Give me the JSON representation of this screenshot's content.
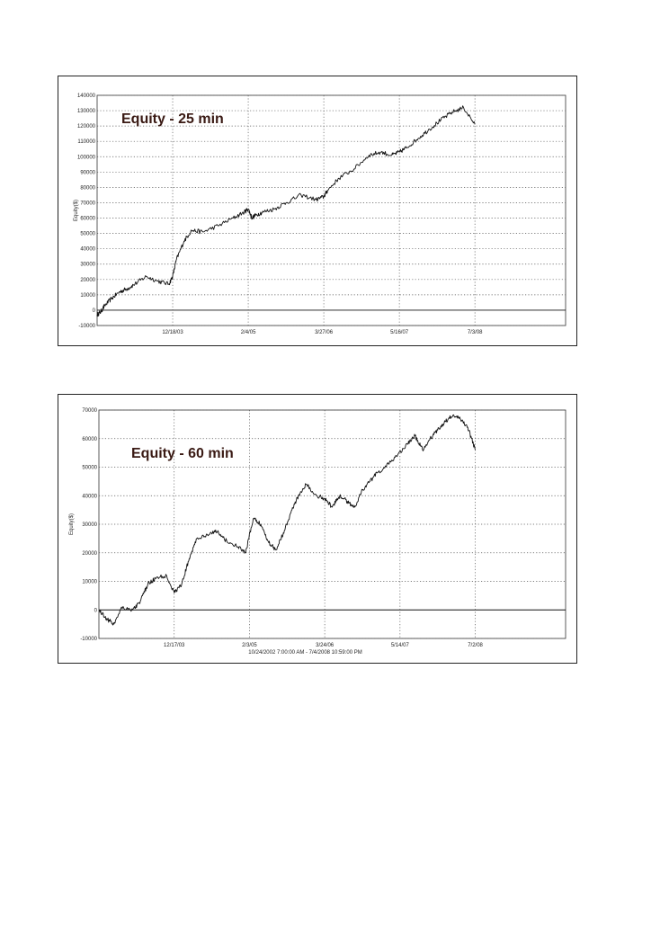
{
  "chart_data": [
    {
      "type": "line",
      "title": "Equity - 25 min",
      "ylabel": "Equity($)",
      "xlabel": "",
      "ylim": [
        -10000,
        140000
      ],
      "yticks": [
        140000,
        130000,
        120000,
        110000,
        100000,
        90000,
        80000,
        70000,
        60000,
        50000,
        40000,
        30000,
        20000,
        10000,
        0,
        -10000
      ],
      "xticks": [
        "12/18/03",
        "2/4/05",
        "3/27/06",
        "5/16/07",
        "7/3/08"
      ],
      "grid": true,
      "series": [
        {
          "x": [
            0,
            0.05,
            0.1,
            0.2,
            0.3,
            0.4,
            0.5,
            0.65,
            0.8,
            0.95,
            1.0,
            1.05,
            1.15,
            1.25,
            1.4,
            1.6,
            1.8,
            1.95,
            2.0,
            2.05,
            2.1,
            2.2,
            2.35,
            2.5,
            2.7,
            2.9,
            3.0,
            3.05,
            3.2,
            3.4,
            3.6,
            3.75,
            3.9,
            4.0,
            4.1,
            4.25,
            4.4,
            4.55,
            4.7,
            4.85,
            5.0
          ],
          "y": [
            -3000,
            -1000,
            3000,
            8000,
            12000,
            14000,
            17000,
            22000,
            19000,
            17000,
            22000,
            33000,
            45000,
            52000,
            51000,
            55000,
            60000,
            64000,
            66000,
            60000,
            62000,
            64000,
            66000,
            70000,
            75000,
            72000,
            74000,
            78000,
            86000,
            92000,
            101000,
            103000,
            101000,
            103000,
            106000,
            112000,
            118000,
            124000,
            129000,
            132000,
            121000
          ]
        }
      ]
    },
    {
      "type": "line",
      "title": "Equity - 60 min",
      "ylabel": "Equity($)",
      "xlabel": "10/24/2002 7:00:00 AM - 7/4/2008 10:59:00 PM",
      "ylim": [
        -10000,
        70000
      ],
      "yticks": [
        70000,
        60000,
        50000,
        40000,
        30000,
        20000,
        10000,
        0,
        -10000
      ],
      "xticks": [
        "12/17/03",
        "2/3/05",
        "3/24/06",
        "5/14/07",
        "7/2/08"
      ],
      "grid": true,
      "series": [
        {
          "x": [
            0,
            0.1,
            0.2,
            0.3,
            0.45,
            0.55,
            0.65,
            0.75,
            0.9,
            1.0,
            1.1,
            1.2,
            1.3,
            1.45,
            1.55,
            1.7,
            1.85,
            1.95,
            2.05,
            2.15,
            2.25,
            2.35,
            2.45,
            2.55,
            2.65,
            2.75,
            2.9,
            3.0,
            3.1,
            3.2,
            3.3,
            3.4,
            3.5,
            3.6,
            3.7,
            3.85,
            3.95,
            4.1,
            4.2,
            4.3,
            4.4,
            4.5,
            4.6,
            4.7,
            4.8,
            4.9,
            5.0
          ],
          "y": [
            0,
            -3000,
            -5000,
            1000,
            0,
            3000,
            9000,
            11000,
            12000,
            6000,
            9000,
            18000,
            25000,
            26000,
            28000,
            24000,
            22000,
            20000,
            32000,
            30000,
            24000,
            21000,
            27000,
            34000,
            40000,
            44000,
            40000,
            39000,
            36000,
            40000,
            38000,
            36000,
            42000,
            45000,
            48000,
            51000,
            54000,
            58000,
            61000,
            56000,
            60000,
            63000,
            66000,
            68000,
            67000,
            64000,
            56000
          ]
        }
      ]
    }
  ]
}
